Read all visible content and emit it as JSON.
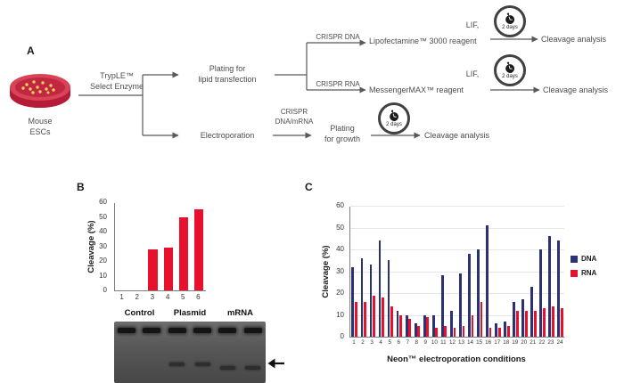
{
  "colors": {
    "red": "#e8112d",
    "navy": "#2b3172",
    "flow_text": "#4d4d4d"
  },
  "panelA": {
    "label": "A",
    "dish_l1": "Mouse",
    "dish_l2": "ESCs",
    "tryple_l1": "TrypLE™",
    "tryple_l2": "Select Enzyme",
    "plating_lipid_l1": "Plating for",
    "plating_lipid_l2": "lipid transfection",
    "crispr_dna": "CRISPR DNA",
    "crispr_rna": "CRISPR RNA",
    "lif": "LIF,",
    "lipofectamine": "Lipofectamine™ 3000 reagent",
    "messengermax": "MessengerMAX™ reagent",
    "electroporation": "Electroporation",
    "crispr_dm_l1": "CRISPR",
    "crispr_dm_l2": "DNA/mRNA",
    "plating_growth_l1": "Plating",
    "plating_growth_l2": "for growth",
    "cleavage": "Cleavage analysis",
    "timer_caption": "2 days"
  },
  "panelB": {
    "label": "B"
  },
  "panelC": {
    "label": "C"
  },
  "chart_data": [
    {
      "type": "bar",
      "panel": "B",
      "title": "",
      "categories": [
        "1",
        "2",
        "3",
        "4",
        "5",
        "6"
      ],
      "values": [
        0,
        0,
        28,
        29,
        50,
        55
      ],
      "ylabel": "Cleavage (%)",
      "xlabel": "",
      "ylim": [
        0,
        60
      ],
      "ytick_step": 10,
      "grid": false,
      "bar_color": "#e8112d"
    },
    {
      "type": "bar",
      "panel": "C",
      "title": "",
      "categories": [
        "1",
        "2",
        "3",
        "4",
        "5",
        "6",
        "7",
        "8",
        "9",
        "10",
        "11",
        "12",
        "13",
        "14",
        "15",
        "16",
        "17",
        "18",
        "19",
        "20",
        "21",
        "22",
        "23",
        "24"
      ],
      "series": [
        {
          "name": "DNA",
          "color": "#2b3172",
          "values": [
            32,
            36,
            33,
            44,
            35,
            12,
            10,
            6,
            10,
            10,
            28,
            12,
            29,
            38,
            40,
            51,
            6,
            7,
            16,
            17,
            23,
            40,
            46,
            44
          ]
        },
        {
          "name": "RNA",
          "color": "#e8112d",
          "values": [
            16,
            16,
            19,
            18,
            14,
            10,
            8,
            5,
            9,
            4,
            5,
            4,
            5,
            10,
            16,
            4,
            4,
            5,
            12,
            12,
            12,
            13,
            14,
            13
          ]
        }
      ],
      "ylabel": "Cleavage (%)",
      "xlabel": "Neon™ electroporation conditions",
      "ylim": [
        0,
        60
      ],
      "ytick_step": 10,
      "grid": true,
      "legend_position": "right"
    }
  ],
  "gel": {
    "labels": [
      "Control",
      "Plasmid",
      "mRNA"
    ],
    "lanes": [
      {
        "upper": true,
        "lower": null
      },
      {
        "upper": true,
        "lower": null
      },
      {
        "upper": true,
        "lower": 46
      },
      {
        "upper": true,
        "lower": 46
      },
      {
        "upper": true,
        "lower": 50
      },
      {
        "upper": true,
        "lower": 50
      }
    ]
  }
}
